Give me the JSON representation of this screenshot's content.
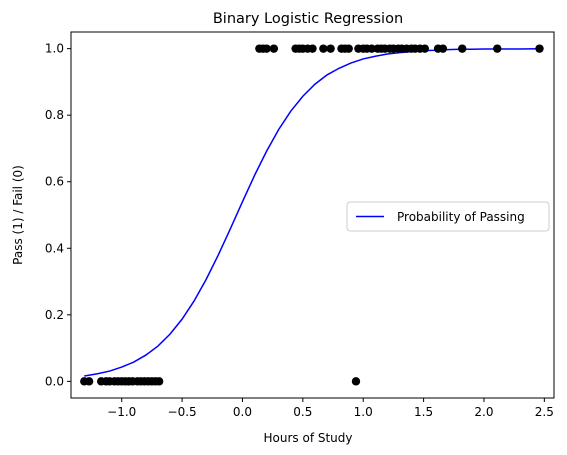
{
  "chart_data": {
    "type": "scatter",
    "title": "Binary Logistic Regression",
    "xlabel": "Hours of Study",
    "ylabel": "Pass (1) / Fail (0)",
    "xlim": [
      -1.42,
      2.58
    ],
    "ylim": [
      -0.05,
      1.05
    ],
    "xticks": [
      -1.0,
      -0.5,
      0.0,
      0.5,
      1.0,
      1.5,
      2.0,
      2.5
    ],
    "xtick_labels": [
      "−1.0",
      "−0.5",
      "0.0",
      "0.5",
      "1.0",
      "1.5",
      "2.0",
      "2.5"
    ],
    "yticks": [
      0.0,
      0.2,
      0.4,
      0.6,
      0.8,
      1.0
    ],
    "ytick_labels": [
      "0.0",
      "0.2",
      "0.4",
      "0.6",
      "0.8",
      "1.0"
    ],
    "grid": false,
    "legend": {
      "placement": "center-right",
      "entries": [
        "Probability of Passing"
      ]
    },
    "series": [
      {
        "name": "Probability of Passing",
        "kind": "line",
        "color": "#0000ff",
        "x": [
          -1.31,
          -1.2,
          -1.1,
          -1.0,
          -0.9,
          -0.8,
          -0.7,
          -0.6,
          -0.5,
          -0.4,
          -0.3,
          -0.2,
          -0.1,
          0.0,
          0.1,
          0.2,
          0.3,
          0.4,
          0.5,
          0.6,
          0.7,
          0.8,
          0.9,
          1.0,
          1.1,
          1.2,
          1.3,
          1.4,
          1.5,
          1.6,
          1.7,
          1.8,
          1.9,
          2.0,
          2.1,
          2.2,
          2.3,
          2.46
        ],
        "y": [
          0.016,
          0.023,
          0.031,
          0.043,
          0.058,
          0.079,
          0.106,
          0.142,
          0.187,
          0.242,
          0.307,
          0.38,
          0.459,
          0.54,
          0.619,
          0.692,
          0.757,
          0.812,
          0.857,
          0.893,
          0.921,
          0.941,
          0.957,
          0.969,
          0.977,
          0.984,
          0.988,
          0.991,
          0.994,
          0.995,
          0.997,
          0.998,
          0.998,
          0.999,
          0.999,
          0.999,
          0.999,
          0.9997
        ]
      },
      {
        "name": "",
        "kind": "scatter",
        "color": "#000000",
        "x": [
          -1.31,
          -1.27,
          -1.17,
          -1.13,
          -1.1,
          -1.06,
          -1.03,
          -1.0,
          -0.97,
          -0.94,
          -0.91,
          -0.87,
          -0.84,
          -0.81,
          -0.78,
          -0.75,
          -0.72,
          -0.69,
          0.94,
          0.14,
          0.17,
          0.2,
          0.26,
          0.44,
          0.47,
          0.5,
          0.54,
          0.58,
          0.67,
          0.73,
          0.82,
          0.85,
          0.88,
          0.96,
          1.0,
          1.03,
          1.07,
          1.12,
          1.15,
          1.18,
          1.22,
          1.25,
          1.29,
          1.32,
          1.36,
          1.4,
          1.43,
          1.47,
          1.51,
          1.62,
          1.66,
          1.82,
          2.11,
          2.46
        ],
        "y": [
          0,
          0,
          0,
          0,
          0,
          0,
          0,
          0,
          0,
          0,
          0,
          0,
          0,
          0,
          0,
          0,
          0,
          0,
          0,
          1,
          1,
          1,
          1,
          1,
          1,
          1,
          1,
          1,
          1,
          1,
          1,
          1,
          1,
          1,
          1,
          1,
          1,
          1,
          1,
          1,
          1,
          1,
          1,
          1,
          1,
          1,
          1,
          1,
          1,
          1,
          1,
          1,
          1,
          1
        ]
      }
    ]
  }
}
